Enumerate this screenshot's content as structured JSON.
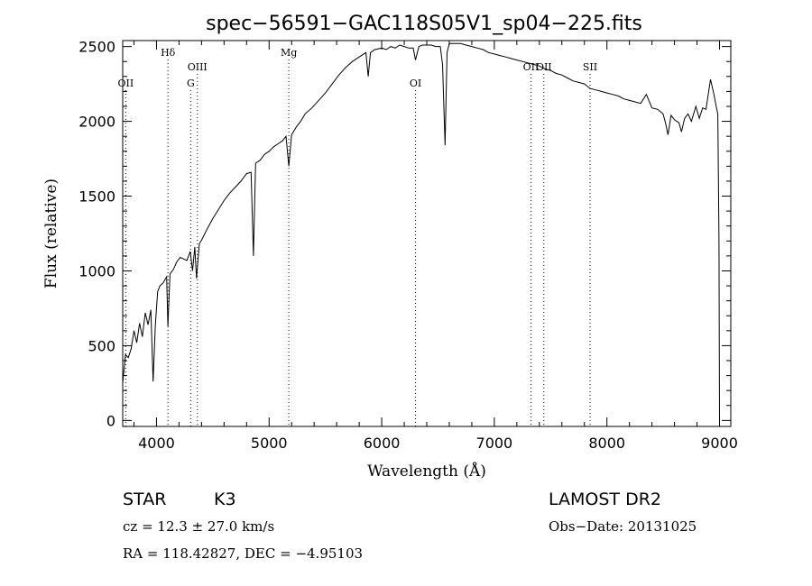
{
  "chart_data": {
    "type": "line",
    "title": "spec−56591−GAC118S05V1_sp04−225.fits",
    "xlabel": "Wavelength (Å)",
    "ylabel": "Flux (relative)",
    "xlim": [
      3700,
      9100
    ],
    "ylim": [
      -40,
      2540
    ],
    "x_ticks": [
      4000,
      5000,
      6000,
      7000,
      8000,
      9000
    ],
    "x_tick_labels": [
      "4000",
      "5000",
      "6000",
      "7000",
      "8000",
      "9000"
    ],
    "y_ticks": [
      0,
      500,
      1000,
      1500,
      2000,
      2500
    ],
    "y_tick_labels": [
      "0",
      "500",
      "1000",
      "1500",
      "2000",
      "2500"
    ],
    "grid": false,
    "legend": "none",
    "line_color": "#000000",
    "marker_line_color": "#000000",
    "line_markers": [
      {
        "label": "OII",
        "x": 3727,
        "row": 2
      },
      {
        "label": "Hδ",
        "x": 4102,
        "row": 0
      },
      {
        "label": "G",
        "x": 4304,
        "row": 2
      },
      {
        "label": "OIII",
        "x": 4363,
        "row": 1
      },
      {
        "label": "Mg",
        "x": 5175,
        "row": 0
      },
      {
        "label": "OI",
        "x": 6300,
        "row": 2
      },
      {
        "label": "OII",
        "x": 7325,
        "row": 1
      },
      {
        "label": "OII",
        "x": 7440,
        "row": 1
      },
      {
        "label": "SII",
        "x": 7850,
        "row": 1
      }
    ],
    "series": [
      {
        "x": [
          3700,
          3725,
          3750,
          3775,
          3800,
          3825,
          3850,
          3875,
          3900,
          3925,
          3950,
          3970,
          3990,
          4010,
          4030,
          4060,
          4090,
          4101,
          4120,
          4150,
          4180,
          4210,
          4240,
          4270,
          4300,
          4320,
          4340,
          4355,
          4380,
          4410,
          4450,
          4500,
          4550,
          4600,
          4650,
          4700,
          4750,
          4800,
          4840,
          4861,
          4880,
          4920,
          4960,
          5000,
          5040,
          5080,
          5120,
          5150,
          5175,
          5200,
          5240,
          5280,
          5320,
          5380,
          5440,
          5500,
          5560,
          5620,
          5680,
          5740,
          5800,
          5860,
          5880,
          5900,
          5940,
          6000,
          6040,
          6080,
          6120,
          6160,
          6200,
          6240,
          6280,
          6300,
          6330,
          6360,
          6400,
          6440,
          6480,
          6520,
          6540,
          6563,
          6580,
          6600,
          6650,
          6700,
          6750,
          6800,
          6850,
          6900,
          6950,
          7000,
          7050,
          7100,
          7150,
          7200,
          7250,
          7300,
          7350,
          7400,
          7450,
          7500,
          7550,
          7600,
          7650,
          7700,
          7750,
          7800,
          7850,
          7900,
          7950,
          8000,
          8050,
          8100,
          8150,
          8200,
          8250,
          8300,
          8350,
          8400,
          8450,
          8498,
          8520,
          8542,
          8570,
          8600,
          8640,
          8662,
          8690,
          8720,
          8750,
          8790,
          8820,
          8850,
          8880,
          8920,
          8950,
          8970,
          8985,
          8995,
          9000
        ],
        "y": [
          250,
          440,
          420,
          480,
          600,
          520,
          650,
          560,
          720,
          640,
          740,
          260,
          640,
          860,
          900,
          920,
          960,
          630,
          980,
          1010,
          1060,
          1090,
          1080,
          1070,
          1130,
          1000,
          1160,
          950,
          1180,
          1220,
          1280,
          1350,
          1410,
          1470,
          1520,
          1560,
          1600,
          1650,
          1660,
          1100,
          1720,
          1740,
          1780,
          1800,
          1830,
          1850,
          1870,
          1900,
          1700,
          1910,
          1960,
          2000,
          2050,
          2090,
          2140,
          2190,
          2250,
          2310,
          2360,
          2400,
          2430,
          2460,
          2300,
          2460,
          2480,
          2490,
          2480,
          2500,
          2490,
          2510,
          2500,
          2490,
          2490,
          2410,
          2500,
          2510,
          2510,
          2510,
          2500,
          2500,
          2380,
          1840,
          2460,
          2520,
          2520,
          2520,
          2510,
          2500,
          2490,
          2480,
          2460,
          2450,
          2440,
          2430,
          2420,
          2410,
          2400,
          2390,
          2380,
          2370,
          2350,
          2340,
          2320,
          2310,
          2290,
          2270,
          2260,
          2250,
          2220,
          2210,
          2200,
          2190,
          2180,
          2170,
          2150,
          2140,
          2130,
          2120,
          2180,
          2090,
          2080,
          2050,
          1990,
          1910,
          2040,
          2010,
          1990,
          1930,
          2020,
          2050,
          2000,
          2100,
          2020,
          2090,
          2080,
          2280,
          2180,
          2100,
          2050,
          1200,
          -10
        ]
      }
    ]
  },
  "annotations": {
    "object_class": "STAR",
    "subclass": "K3",
    "survey": "LAMOST DR2",
    "redshift": "cz = 12.3 ± 27.0 km/s",
    "obs_date": "Obs−Date: 20131025",
    "coordinates": "RA = 118.42827, DEC =  −4.95103"
  }
}
